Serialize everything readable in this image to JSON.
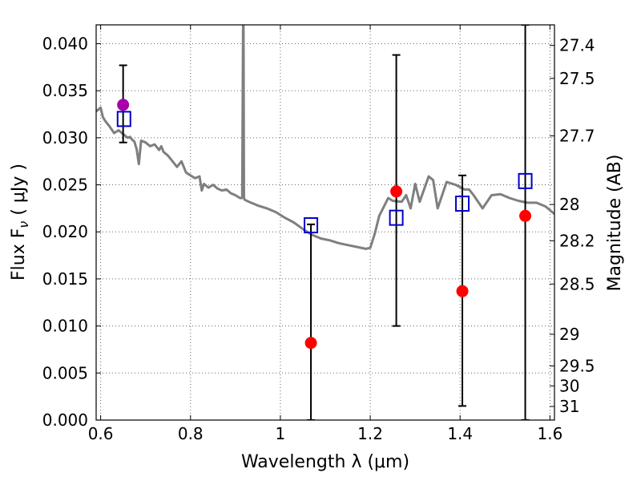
{
  "chart_data": {
    "type": "scatter",
    "title": "",
    "xlabel": "Wavelength  λ (μm)",
    "ylabel": "Flux  F",
    "ylabel_sub": "ν",
    "ylabel_unit": " ( μJy )",
    "y2label": "Magnitude (AB)",
    "xlim": [
      0.59,
      1.61
    ],
    "ylim": [
      0.0,
      0.042
    ],
    "grid": true,
    "x_ticks": [
      0.6,
      0.8,
      1.0,
      1.2,
      1.4,
      1.6
    ],
    "x_tick_labels": [
      "0.6",
      "0.8",
      "1",
      "1.2",
      "1.4",
      "1.6"
    ],
    "y_ticks": [
      0.0,
      0.005,
      0.01,
      0.015,
      0.02,
      0.025,
      0.03,
      0.035,
      0.04
    ],
    "y_tick_labels": [
      "0.000",
      "0.005",
      "0.010",
      "0.015",
      "0.020",
      "0.025",
      "0.030",
      "0.035",
      "0.040"
    ],
    "y2_ticks": [
      27.4,
      27.5,
      27.7,
      28,
      28.2,
      28.5,
      29,
      29.5,
      30,
      31
    ],
    "y2_tick_labels": [
      "27.4",
      "27.5",
      "27.7",
      "28",
      "28.2",
      "28.5",
      "29",
      "29.5",
      "30",
      "31"
    ],
    "series": [
      {
        "kind": "line",
        "color": "#7f7f7f",
        "x": [
          0.59,
          0.6,
          0.605,
          0.61,
          0.62,
          0.63,
          0.64,
          0.65,
          0.655,
          0.66,
          0.665,
          0.67,
          0.675,
          0.68,
          0.685,
          0.69,
          0.7,
          0.71,
          0.72,
          0.73,
          0.735,
          0.74,
          0.75,
          0.76,
          0.77,
          0.78,
          0.79,
          0.8,
          0.81,
          0.82,
          0.825,
          0.83,
          0.84,
          0.85,
          0.86,
          0.87,
          0.88,
          0.89,
          0.9,
          0.91,
          0.915,
          0.917,
          0.918,
          0.919,
          0.921,
          0.93,
          0.95,
          0.97,
          0.99,
          1.01,
          1.03,
          1.05,
          1.07,
          1.09,
          1.11,
          1.13,
          1.15,
          1.17,
          1.19,
          1.2,
          1.21,
          1.22,
          1.24,
          1.25,
          1.27,
          1.28,
          1.29,
          1.3,
          1.31,
          1.33,
          1.34,
          1.35,
          1.37,
          1.39,
          1.41,
          1.42,
          1.43,
          1.45,
          1.47,
          1.49,
          1.51,
          1.53,
          1.55,
          1.57,
          1.59,
          1.61
        ],
        "y": [
          0.0328,
          0.0332,
          0.0322,
          0.0318,
          0.0312,
          0.0305,
          0.0308,
          0.0304,
          0.0302,
          0.03,
          0.0301,
          0.0298,
          0.0296,
          0.0288,
          0.0272,
          0.0297,
          0.0295,
          0.0291,
          0.0293,
          0.0287,
          0.0291,
          0.0285,
          0.0281,
          0.0275,
          0.0269,
          0.0275,
          0.0263,
          0.026,
          0.0257,
          0.0259,
          0.0244,
          0.0251,
          0.0247,
          0.025,
          0.0246,
          0.0244,
          0.0245,
          0.0241,
          0.0239,
          0.0236,
          0.0236,
          0.042,
          0.042,
          0.0236,
          0.0234,
          0.0232,
          0.0228,
          0.0225,
          0.0221,
          0.0215,
          0.021,
          0.0203,
          0.0197,
          0.0193,
          0.0191,
          0.0188,
          0.0186,
          0.0184,
          0.0182,
          0.0183,
          0.0198,
          0.0217,
          0.0236,
          0.0233,
          0.0232,
          0.0239,
          0.0225,
          0.0251,
          0.0232,
          0.0259,
          0.0255,
          0.0225,
          0.0253,
          0.025,
          0.0245,
          0.0245,
          0.0239,
          0.0225,
          0.0239,
          0.024,
          0.0236,
          0.0233,
          0.0231,
          0.0231,
          0.0227,
          0.0219
        ]
      },
      {
        "kind": "measured",
        "color": "#ff0000",
        "marker": "circle",
        "x": [
          0.65,
          1.068,
          1.258,
          1.405,
          1.545
        ],
        "y": [
          0.0335,
          0.0082,
          0.0243,
          0.0137,
          0.0217
        ]
      },
      {
        "kind": "errorbars",
        "color": "#000000",
        "x": [
          0.65,
          1.068,
          1.258,
          1.405,
          1.545
        ],
        "low": [
          0.0295,
          0.0,
          0.01,
          0.0015,
          0.0
        ],
        "high": [
          0.0377,
          0.0208,
          0.0388,
          0.026,
          0.042
        ]
      },
      {
        "kind": "model",
        "color": "#0000cc",
        "marker": "square",
        "x": [
          0.652,
          1.068,
          1.258,
          1.405,
          1.545
        ],
        "y": [
          0.032,
          0.0207,
          0.0215,
          0.023,
          0.0254
        ]
      }
    ],
    "highlight_point": {
      "x": 0.65,
      "y": 0.0335,
      "color": "#aa00aa"
    }
  }
}
